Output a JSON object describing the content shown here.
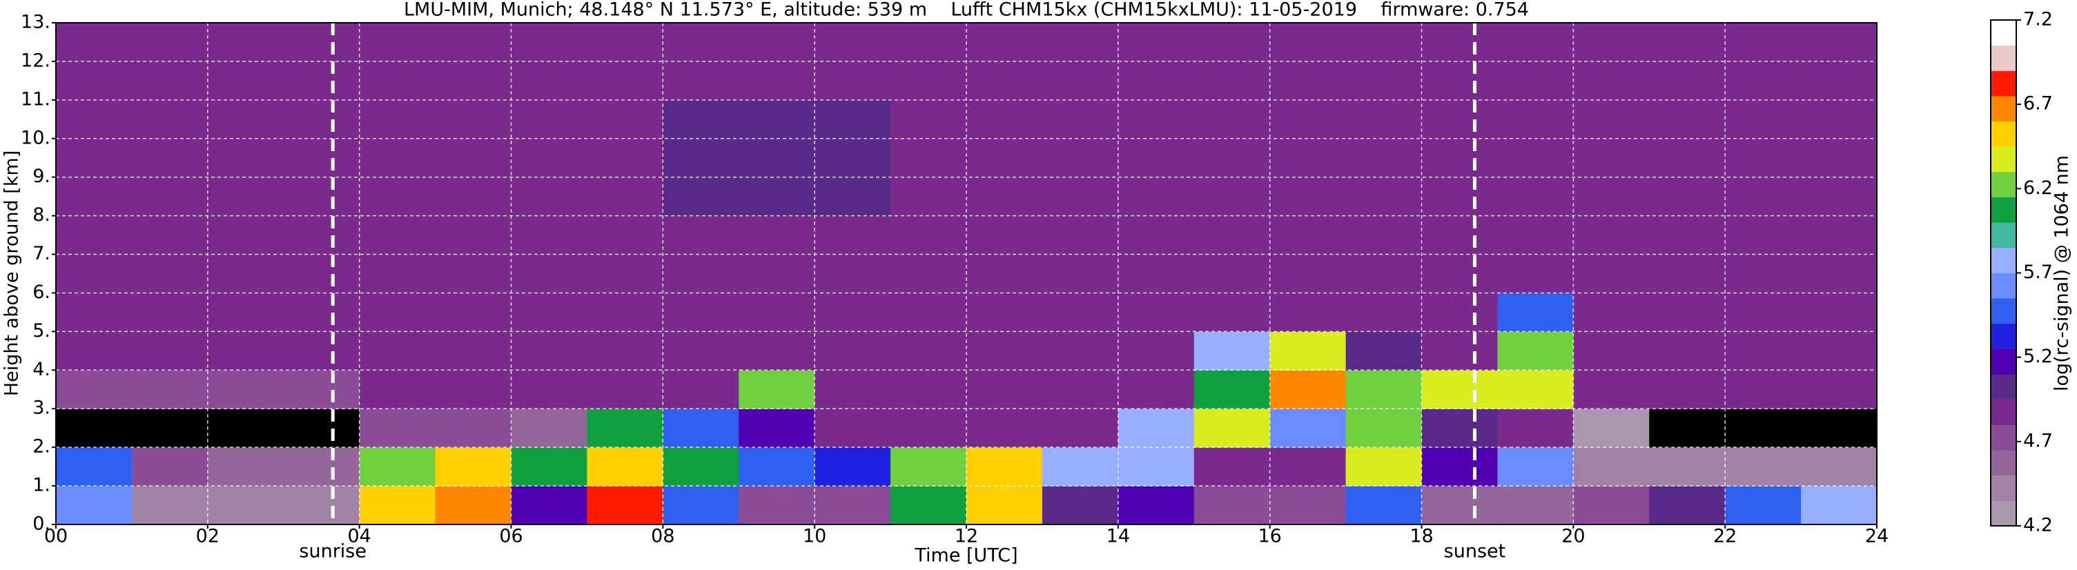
{
  "chart_data": {
    "type": "heatmap",
    "title": "LMU-MIM, Munich; 48.148° N 11.573° E, altitude: 539 m    Lufft CHM15kx (CHM15kxLMU): 11-05-2019    firmware: 0.754",
    "x_label": "Time [UTC]",
    "y_label": "Height above ground [km]",
    "xlim": [
      0,
      24
    ],
    "ylim": [
      0,
      13
    ],
    "xticks": [
      {
        "value": 0,
        "label": "00"
      },
      {
        "value": 2,
        "label": "02"
      },
      {
        "value": 4,
        "label": "04"
      },
      {
        "value": 6,
        "label": "06"
      },
      {
        "value": 8,
        "label": "08"
      },
      10,
      12,
      14,
      16,
      18,
      20,
      22,
      24
    ],
    "yticks": [
      {
        "value": 0,
        "label": "0."
      },
      {
        "value": 1,
        "label": "1."
      },
      {
        "value": 2,
        "label": "2."
      },
      {
        "value": 3,
        "label": "3."
      },
      {
        "value": 4,
        "label": "4."
      },
      {
        "value": 5,
        "label": "5."
      },
      {
        "value": 6,
        "label": "6."
      },
      {
        "value": 7,
        "label": "7."
      },
      {
        "value": 8,
        "label": "8."
      },
      {
        "value": 9,
        "label": "9."
      },
      {
        "value": 10,
        "label": "10."
      },
      {
        "value": 11,
        "label": "11."
      },
      {
        "value": 12,
        "label": "12."
      },
      {
        "value": 13,
        "label": "13."
      }
    ],
    "grid": true,
    "markers": [
      {
        "x": 3.65,
        "label": "sunrise"
      },
      {
        "x": 18.7,
        "label": "sunset"
      }
    ],
    "z": [
      [
        5.6,
        4.5,
        4.5,
        4.5,
        6.5,
        6.7,
        5.2,
        6.8,
        5.5,
        4.7,
        4.7,
        6.0,
        6.5,
        5.0,
        5.2,
        4.7,
        4.7,
        5.5,
        4.6,
        4.6,
        4.8,
        5.0,
        5.4,
        5.8
      ],
      [
        5.5,
        4.8,
        4.6,
        4.6,
        6.3,
        6.6,
        6.0,
        6.6,
        6.0,
        5.5,
        5.3,
        6.2,
        6.5,
        5.8,
        5.8,
        4.9,
        4.9,
        6.4,
        5.2,
        5.6,
        4.4,
        4.4,
        4.4,
        4.4
      ],
      [
        4.0,
        4.0,
        4.0,
        4.0,
        4.8,
        4.8,
        4.6,
        6.0,
        5.5,
        5.2,
        4.9,
        4.9,
        4.9,
        4.9,
        5.8,
        6.4,
        5.6,
        6.2,
        5.0,
        4.9,
        4.2,
        4.0,
        4.0,
        4.0
      ],
      [
        4.7,
        4.7,
        4.7,
        4.7,
        4.9,
        4.9,
        4.9,
        4.9,
        4.9,
        6.3,
        4.9,
        4.9,
        4.9,
        4.9,
        4.9,
        6.0,
        6.7,
        6.3,
        6.4,
        6.4,
        4.9,
        4.9,
        4.9,
        4.9
      ],
      [
        4.9,
        4.9,
        4.9,
        4.9,
        4.9,
        4.9,
        4.9,
        4.9,
        4.9,
        4.9,
        4.9,
        4.9,
        4.9,
        4.9,
        4.9,
        5.8,
        6.4,
        5.0,
        4.9,
        6.3,
        4.9,
        4.9,
        4.9,
        4.9
      ],
      [
        4.9,
        4.9,
        4.9,
        4.9,
        4.9,
        4.9,
        4.9,
        4.9,
        4.9,
        4.9,
        4.9,
        4.9,
        4.9,
        4.9,
        4.9,
        4.9,
        4.9,
        4.9,
        4.9,
        5.4,
        4.9,
        4.9,
        4.9,
        4.9
      ],
      [
        4.9,
        4.9,
        4.9,
        4.9,
        4.9,
        4.9,
        4.9,
        4.9,
        4.9,
        4.9,
        4.9,
        4.9,
        4.9,
        4.9,
        4.9,
        4.9,
        4.9,
        4.9,
        4.9,
        4.9,
        4.9,
        4.9,
        4.9,
        4.9
      ],
      [
        4.9,
        4.9,
        4.9,
        4.9,
        4.9,
        4.9,
        4.9,
        4.9,
        4.9,
        4.9,
        4.9,
        4.9,
        4.9,
        4.9,
        4.9,
        4.9,
        4.9,
        4.9,
        4.9,
        4.9,
        4.9,
        4.9,
        4.9,
        4.9
      ],
      [
        4.9,
        4.9,
        4.9,
        4.9,
        4.9,
        4.9,
        4.9,
        4.9,
        5.0,
        5.0,
        5.0,
        4.9,
        4.9,
        4.9,
        4.9,
        4.9,
        4.9,
        4.9,
        4.9,
        4.9,
        4.9,
        4.9,
        4.9,
        4.9
      ],
      [
        4.9,
        4.9,
        4.9,
        4.9,
        4.9,
        4.9,
        4.9,
        4.9,
        5.0,
        5.0,
        5.0,
        4.9,
        4.9,
        4.9,
        4.9,
        4.9,
        4.9,
        4.9,
        4.9,
        4.9,
        4.9,
        4.9,
        4.9,
        4.9
      ],
      [
        4.9,
        4.9,
        4.9,
        4.9,
        4.9,
        4.9,
        4.9,
        4.9,
        5.0,
        5.0,
        5.0,
        4.9,
        4.9,
        4.9,
        4.9,
        4.9,
        4.9,
        4.9,
        4.9,
        4.9,
        4.9,
        4.9,
        4.9,
        4.9
      ],
      [
        4.9,
        4.9,
        4.9,
        4.9,
        4.9,
        4.9,
        4.9,
        4.9,
        4.9,
        4.9,
        4.9,
        4.9,
        4.9,
        4.9,
        4.9,
        4.9,
        4.9,
        4.9,
        4.9,
        4.9,
        4.9,
        4.9,
        4.9,
        4.9
      ],
      [
        4.9,
        4.9,
        4.9,
        4.9,
        4.9,
        4.9,
        4.9,
        4.9,
        4.9,
        4.9,
        4.9,
        4.9,
        4.9,
        4.9,
        4.9,
        4.9,
        4.9,
        4.9,
        4.9,
        4.9,
        4.9,
        4.9,
        4.9,
        4.9
      ]
    ],
    "under_color": "#000000",
    "colorbar": {
      "label": "log(rc-signal) @ 1064 nm",
      "lim": [
        4.2,
        7.2
      ],
      "ticks": [
        4.2,
        4.7,
        5.2,
        5.7,
        6.2,
        6.7,
        7.2
      ],
      "colors": [
        "#ab97ad",
        "#a283a6",
        "#95659c",
        "#8a4c97",
        "#7a2a8c",
        "#5a2a8a",
        "#4f00b0",
        "#2020e0",
        "#3060f0",
        "#6a8cff",
        "#98aeff",
        "#40b8a0",
        "#10a040",
        "#70d040",
        "#d8ec20",
        "#ffd000",
        "#ff8800",
        "#ff1a00",
        "#e8c8c8",
        "#ffffff"
      ]
    }
  }
}
